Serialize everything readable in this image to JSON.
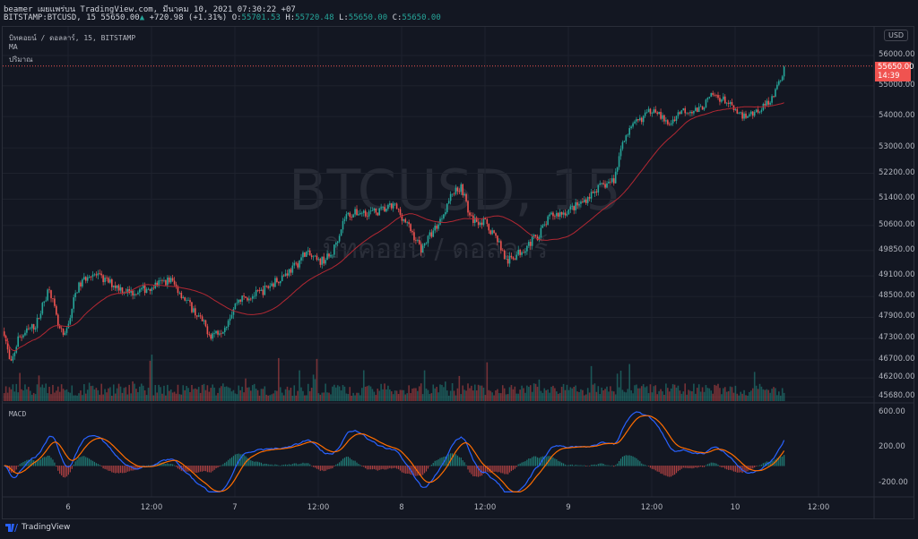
{
  "header": {
    "published": "beamer เผยแพร่บน TradingView.com, มีนาคม 10, 2021 07:30:22 +07",
    "symbol": "BITSTAMP:BTCUSD, 15",
    "last": "55650.00",
    "change": "+720.98 (+1.31%)",
    "o_label": "O:",
    "o": "55701.53",
    "h_label": "H:",
    "h": "55720.48",
    "l_label": "L:",
    "l": "55650.00",
    "c_label": "C:",
    "c": "55650.00"
  },
  "legend": {
    "series": "บิทคอยน์ / ดอลลาร์, 15, BITSTAMP",
    "ma": "MA",
    "volume": "ปริมาณ",
    "macd": "MACD"
  },
  "watermark": {
    "main": "BTCUSD, 15",
    "sub": "บิทคอยน์ / ดอลลาร์"
  },
  "price_axis": {
    "currency": "USD",
    "labels": [
      "56000.00",
      "55000.00",
      "54000.00",
      "53000.00",
      "52200.00",
      "51400.00",
      "50600.00",
      "49850.00",
      "49100.00",
      "48500.00",
      "47900.00",
      "47300.00",
      "46700.00",
      "46200.00",
      "45680.00"
    ],
    "last_price_tag": "55650.00",
    "countdown": "14:39"
  },
  "macd_axis": {
    "labels": [
      "600.00",
      "200.00",
      "-200.00"
    ]
  },
  "time_axis": {
    "labels": [
      [
        "6",
        24
      ],
      [
        "12:00",
        36
      ],
      [
        "7",
        48
      ],
      [
        "12:00",
        60
      ],
      [
        "8",
        72
      ],
      [
        "12:00",
        84
      ],
      [
        "9",
        96
      ],
      [
        "12:00",
        108
      ],
      [
        "10",
        120
      ],
      [
        "12:00",
        132
      ]
    ]
  },
  "footer": {
    "brand": "TradingView"
  },
  "colors": {
    "up": "#26a69a",
    "down": "#ef5350",
    "ma": "#b22833",
    "macd": "#2962ff",
    "signal": "#ff6d00",
    "bg": "#131722"
  },
  "chart_data": {
    "type": "candlestick",
    "symbol": "BTCUSD",
    "interval_minutes": 15,
    "price_scale": "log",
    "ylim": [
      45680,
      56000
    ],
    "time_unit": "hours since Mar 5 00:00",
    "price_path": [
      [
        14.8,
        47500
      ],
      [
        15.7,
        46500
      ],
      [
        16.8,
        47300
      ],
      [
        19.4,
        47700
      ],
      [
        21.3,
        48800
      ],
      [
        22.6,
        47600
      ],
      [
        23.5,
        47300
      ],
      [
        25.2,
        48700
      ],
      [
        27.1,
        49200
      ],
      [
        29.0,
        49000
      ],
      [
        31.0,
        48800
      ],
      [
        32.9,
        48600
      ],
      [
        34.8,
        48700
      ],
      [
        37.4,
        48900
      ],
      [
        38.7,
        49000
      ],
      [
        41.3,
        48300
      ],
      [
        43.2,
        47800
      ],
      [
        44.5,
        47400
      ],
      [
        46.4,
        47600
      ],
      [
        48.4,
        48400
      ],
      [
        51.6,
        48600
      ],
      [
        54.2,
        49000
      ],
      [
        56.8,
        49400
      ],
      [
        58.1,
        49800
      ],
      [
        60.0,
        49500
      ],
      [
        61.9,
        49700
      ],
      [
        63.9,
        50900
      ],
      [
        65.8,
        51000
      ],
      [
        68.4,
        51000
      ],
      [
        71.0,
        51200
      ],
      [
        72.9,
        50600
      ],
      [
        74.8,
        49900
      ],
      [
        77.4,
        50700
      ],
      [
        79.3,
        51600
      ],
      [
        80.6,
        51800
      ],
      [
        81.9,
        50800
      ],
      [
        83.9,
        50700
      ],
      [
        85.8,
        50200
      ],
      [
        87.1,
        49500
      ],
      [
        89.0,
        49800
      ],
      [
        91.6,
        50300
      ],
      [
        93.5,
        50900
      ],
      [
        95.5,
        51000
      ],
      [
        98.0,
        51300
      ],
      [
        100.0,
        51700
      ],
      [
        102.6,
        52000
      ],
      [
        103.9,
        53300
      ],
      [
        105.8,
        53800
      ],
      [
        108.4,
        54300
      ],
      [
        110.3,
        53700
      ],
      [
        112.2,
        54200
      ],
      [
        114.8,
        54200
      ],
      [
        116.8,
        54700
      ],
      [
        118.7,
        54500
      ],
      [
        120.6,
        54000
      ],
      [
        122.6,
        54100
      ],
      [
        124.5,
        54400
      ],
      [
        125.8,
        54800
      ],
      [
        127.2,
        55650
      ]
    ],
    "ma_type": "moving average of close",
    "macd": {
      "fast": 12,
      "slow": 26,
      "signal": 9,
      "ylim": [
        -300,
        650
      ]
    }
  }
}
